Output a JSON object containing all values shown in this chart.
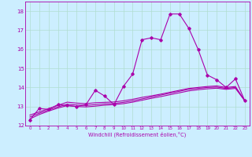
{
  "xlabel": "Windchill (Refroidissement éolien,°C)",
  "bg_color": "#cceeff",
  "grid_color": "#b0ddd0",
  "line_color": "#aa00aa",
  "xlim": [
    -0.5,
    23.5
  ],
  "ylim": [
    12,
    18.5
  ],
  "yticks": [
    12,
    13,
    14,
    15,
    16,
    17,
    18
  ],
  "xticks": [
    0,
    1,
    2,
    3,
    4,
    5,
    6,
    7,
    8,
    9,
    10,
    11,
    12,
    13,
    14,
    15,
    16,
    17,
    18,
    19,
    20,
    21,
    22,
    23
  ],
  "x": [
    0,
    1,
    2,
    3,
    4,
    5,
    6,
    7,
    8,
    9,
    10,
    11,
    12,
    13,
    14,
    15,
    16,
    17,
    18,
    19,
    20,
    21,
    22,
    23
  ],
  "y_jagged": [
    12.3,
    12.9,
    12.85,
    13.1,
    13.05,
    13.0,
    13.1,
    13.85,
    13.55,
    13.1,
    14.05,
    14.7,
    16.5,
    16.6,
    16.5,
    17.85,
    17.85,
    17.1,
    16.0,
    14.65,
    14.4,
    14.0,
    14.45,
    13.3
  ],
  "y_line1": [
    12.55,
    12.72,
    12.89,
    13.06,
    13.23,
    13.18,
    13.15,
    13.2,
    13.22,
    13.24,
    13.3,
    13.38,
    13.48,
    13.56,
    13.65,
    13.75,
    13.85,
    13.95,
    14.0,
    14.05,
    14.08,
    14.0,
    14.05,
    13.3
  ],
  "y_line2": [
    12.45,
    12.65,
    12.82,
    12.98,
    13.12,
    13.08,
    13.06,
    13.1,
    13.14,
    13.16,
    13.22,
    13.3,
    13.4,
    13.5,
    13.6,
    13.7,
    13.8,
    13.9,
    13.95,
    14.0,
    14.02,
    13.95,
    14.0,
    13.3
  ],
  "y_line3": [
    12.35,
    12.58,
    12.76,
    12.92,
    13.05,
    13.0,
    12.98,
    13.02,
    13.07,
    13.1,
    13.15,
    13.23,
    13.33,
    13.43,
    13.52,
    13.62,
    13.72,
    13.82,
    13.88,
    13.93,
    13.96,
    13.9,
    13.95,
    13.3
  ]
}
